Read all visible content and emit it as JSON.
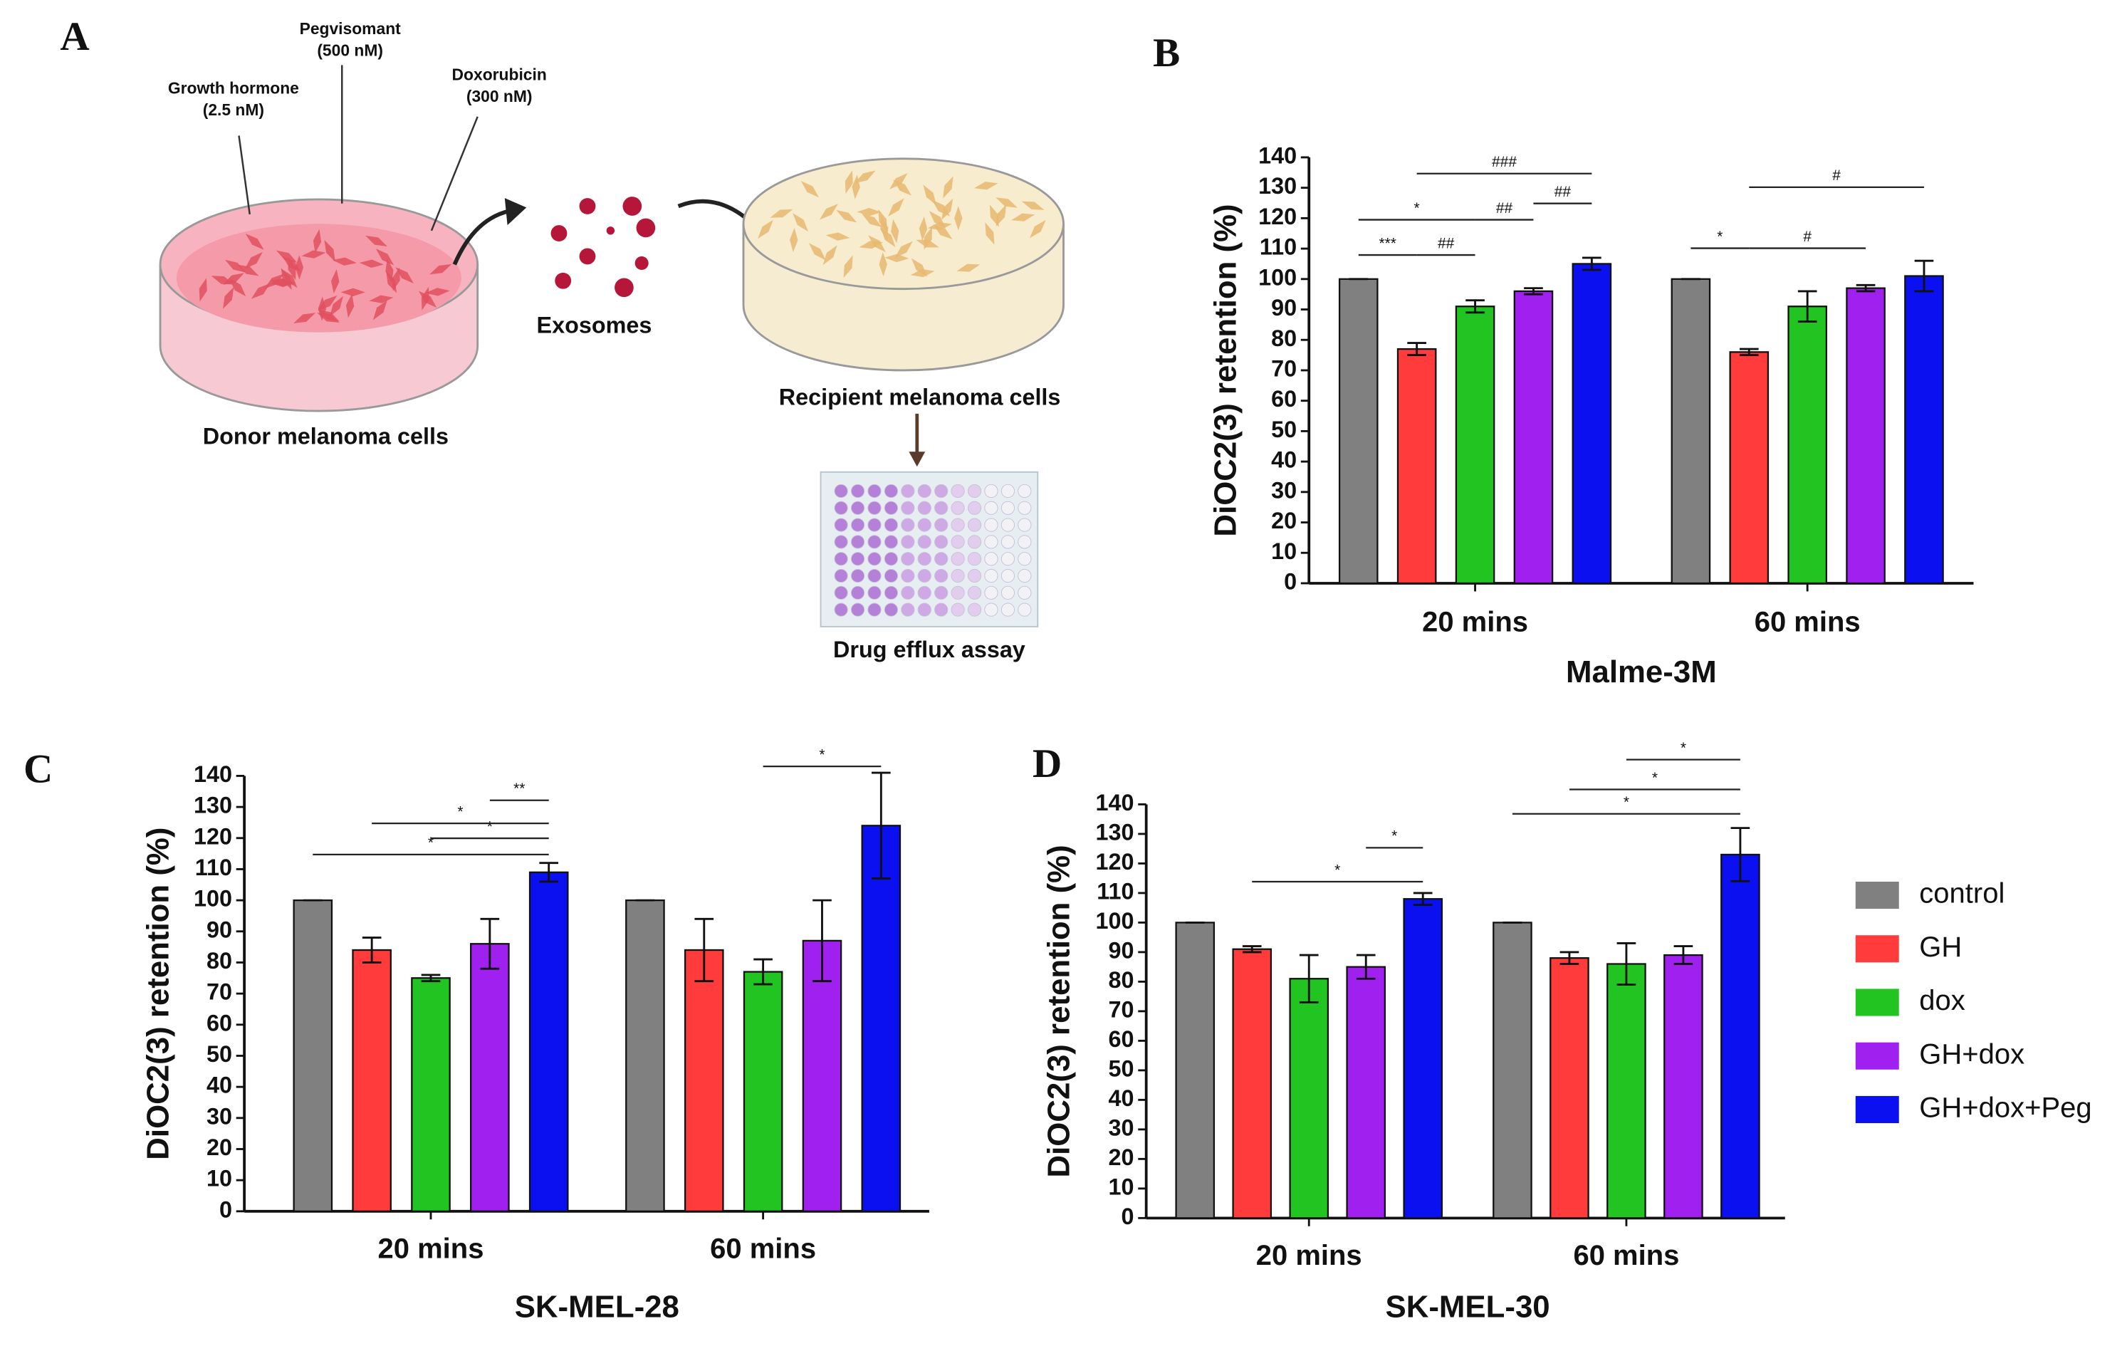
{
  "diagram": {
    "panel": "A",
    "growth_hormone": [
      "Growth hormone",
      "(2.5 nM)"
    ],
    "pegvisomant": [
      "Pegvisomant",
      "(500 nM)"
    ],
    "doxorubicin": [
      "Doxorubicin",
      "(300 nM)"
    ],
    "exosomes": "Exosomes",
    "donor": "Donor melanoma cells",
    "recipient": "Recipient melanoma cells",
    "assay": "Drug efflux assay"
  },
  "chart_data": [
    {
      "type": "bar",
      "panel": "B",
      "ylabel": "DiOC2(3) retention (%)",
      "xlabel": "Malme-3M",
      "categories": [
        "20 mins",
        "60 mins"
      ],
      "ylim": [
        0,
        140
      ],
      "yticks": [
        0,
        10,
        20,
        30,
        40,
        50,
        60,
        70,
        80,
        90,
        100,
        110,
        120,
        130,
        140
      ],
      "series": [
        {
          "color": "#808080",
          "values": [
            100,
            100
          ],
          "errors": [
            0,
            0
          ]
        },
        {
          "color": "#ff3b3b",
          "values": [
            77,
            76
          ],
          "errors": [
            2,
            1
          ]
        },
        {
          "color": "#22c422",
          "values": [
            91,
            91
          ],
          "errors": [
            2,
            5
          ]
        },
        {
          "color": "#a020f0",
          "values": [
            96,
            97
          ],
          "errors": [
            1,
            1
          ]
        },
        {
          "color": "#0a10f0",
          "values": [
            105,
            101
          ],
          "errors": [
            2,
            5
          ]
        }
      ],
      "annotations": [
        {
          "label": "*",
          "from": [
            0,
            0
          ],
          "to": [
            0,
            2
          ]
        },
        {
          "label": "***",
          "from": [
            0,
            0
          ],
          "to": [
            0,
            1
          ]
        },
        {
          "label": "##",
          "from": [
            0,
            1
          ],
          "to": [
            0,
            2
          ]
        },
        {
          "label": "##",
          "from": [
            0,
            2
          ],
          "to": [
            0,
            3
          ]
        },
        {
          "label": "###",
          "from": [
            0,
            1
          ],
          "to": [
            0,
            4
          ]
        },
        {
          "label": "##",
          "from": [
            0,
            3
          ],
          "to": [
            0,
            4
          ]
        },
        {
          "label": "*",
          "from": [
            1,
            0
          ],
          "to": [
            1,
            1
          ]
        },
        {
          "label": "#",
          "from": [
            1,
            1
          ],
          "to": [
            1,
            3
          ]
        },
        {
          "label": "#",
          "from": [
            1,
            1
          ],
          "to": [
            1,
            4
          ]
        }
      ]
    },
    {
      "type": "bar",
      "panel": "C",
      "ylabel": "DiOC2(3) retention (%)",
      "xlabel": "SK-MEL-28",
      "categories": [
        "20 mins",
        "60 mins"
      ],
      "ylim": [
        0,
        140
      ],
      "yticks": [
        0,
        10,
        20,
        30,
        40,
        50,
        60,
        70,
        80,
        90,
        100,
        110,
        120,
        130,
        140
      ],
      "series": [
        {
          "color": "#808080",
          "values": [
            100,
            100
          ],
          "errors": [
            0,
            0
          ]
        },
        {
          "color": "#ff3b3b",
          "values": [
            84,
            84
          ],
          "errors": [
            4,
            10
          ]
        },
        {
          "color": "#22c422",
          "values": [
            75,
            77
          ],
          "errors": [
            1,
            4
          ]
        },
        {
          "color": "#a020f0",
          "values": [
            86,
            87
          ],
          "errors": [
            8,
            13
          ]
        },
        {
          "color": "#0a10f0",
          "values": [
            109,
            124
          ],
          "errors": [
            3,
            17
          ]
        }
      ],
      "annotations": [
        {
          "label": "*",
          "from": [
            0,
            0
          ],
          "to": [
            0,
            4
          ]
        },
        {
          "label": "*",
          "from": [
            0,
            2
          ],
          "to": [
            0,
            4
          ]
        },
        {
          "label": "*",
          "from": [
            0,
            1
          ],
          "to": [
            0,
            4
          ]
        },
        {
          "label": "**",
          "from": [
            0,
            3
          ],
          "to": [
            0,
            4
          ]
        },
        {
          "label": "*",
          "from": [
            1,
            2
          ],
          "to": [
            1,
            4
          ]
        }
      ]
    },
    {
      "type": "bar",
      "panel": "D",
      "ylabel": "DiOC2(3) retention (%)",
      "xlabel": "SK-MEL-30",
      "categories": [
        "20 mins",
        "60 mins"
      ],
      "ylim": [
        0,
        140
      ],
      "yticks": [
        0,
        10,
        20,
        30,
        40,
        50,
        60,
        70,
        80,
        90,
        100,
        110,
        120,
        130,
        140
      ],
      "series": [
        {
          "name": "control",
          "color": "#808080",
          "values": [
            100,
            100
          ],
          "errors": [
            0,
            0
          ]
        },
        {
          "name": "GH",
          "color": "#ff3b3b",
          "values": [
            91,
            88
          ],
          "errors": [
            1,
            2
          ]
        },
        {
          "name": "dox",
          "color": "#22c422",
          "values": [
            81,
            86
          ],
          "errors": [
            8,
            7
          ]
        },
        {
          "name": "GH+dox",
          "color": "#a020f0",
          "values": [
            85,
            89
          ],
          "errors": [
            4,
            3
          ]
        },
        {
          "name": "GH+dox+Peg",
          "color": "#0a10f0",
          "values": [
            108,
            123
          ],
          "errors": [
            2,
            9
          ]
        }
      ],
      "annotations": [
        {
          "label": "*",
          "from": [
            0,
            1
          ],
          "to": [
            0,
            4
          ]
        },
        {
          "label": "*",
          "from": [
            0,
            3
          ],
          "to": [
            0,
            4
          ]
        },
        {
          "label": "*",
          "from": [
            1,
            0
          ],
          "to": [
            1,
            4
          ]
        },
        {
          "label": "*",
          "from": [
            1,
            1
          ],
          "to": [
            1,
            4
          ]
        },
        {
          "label": "*",
          "from": [
            1,
            2
          ],
          "to": [
            1,
            4
          ]
        }
      ]
    }
  ]
}
